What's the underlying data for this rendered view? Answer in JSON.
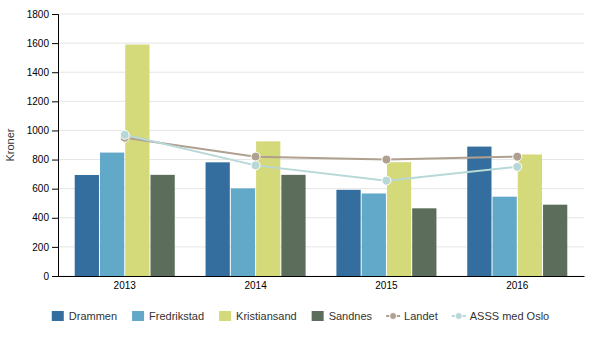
{
  "chart_data": {
    "type": "bar",
    "categories": [
      "2013",
      "2014",
      "2015",
      "2016"
    ],
    "series": [
      {
        "name": "Drammen",
        "type": "bar",
        "color": "#336e9e",
        "values": [
          694,
          781,
          592,
          889
        ]
      },
      {
        "name": "Fredrikstad",
        "type": "bar",
        "color": "#62a8c8",
        "values": [
          848,
          602,
          567,
          545
        ]
      },
      {
        "name": "Kristiansand",
        "type": "bar",
        "color": "#d4d97a",
        "values": [
          1590,
          925,
          782,
          835
        ]
      },
      {
        "name": "Sandnes",
        "type": "bar",
        "color": "#5c6e5b",
        "values": [
          695,
          695,
          465,
          490
        ]
      },
      {
        "name": "Landet",
        "type": "line",
        "marker": "circle",
        "color": "#b0a090",
        "values": [
          950,
          820,
          800,
          820
        ]
      },
      {
        "name": "ASSS med Oslo",
        "type": "line",
        "marker": "circle",
        "color": "#b8d8d8",
        "values": [
          970,
          760,
          655,
          750
        ]
      }
    ],
    "ylabel": "Kroner",
    "ylim": [
      0,
      1800
    ],
    "yticks": [
      0,
      200,
      400,
      600,
      800,
      1000,
      1200,
      1400,
      1600,
      1800
    ],
    "grid": true,
    "legend": "bottom"
  }
}
